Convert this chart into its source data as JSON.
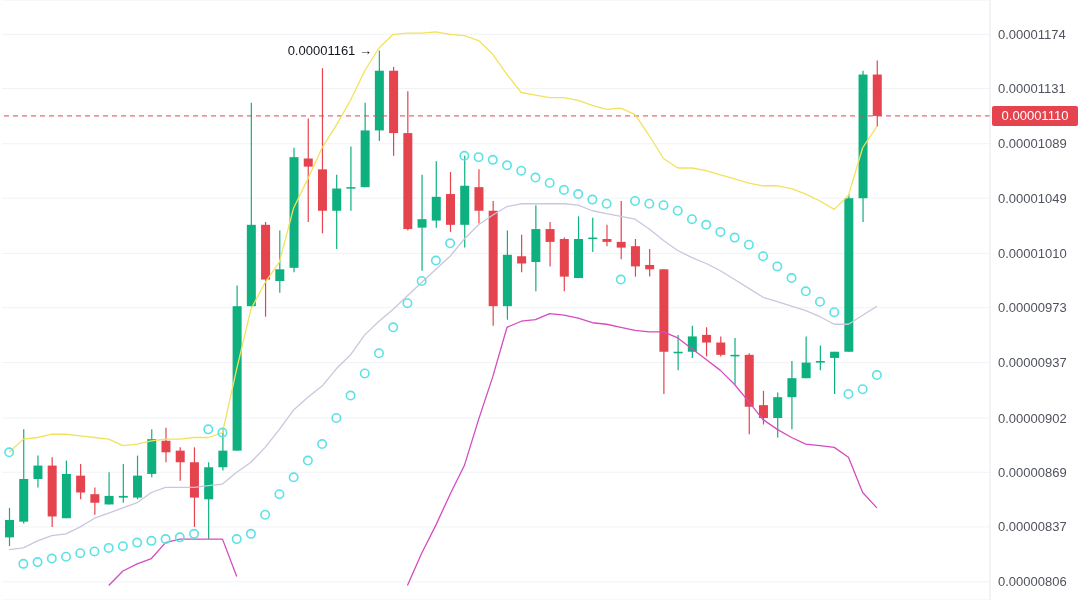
{
  "chart_data": {
    "type": "candlestick",
    "categories": [
      null,
      null,
      null,
      null,
      null,
      null,
      null,
      null,
      null,
      null,
      null,
      null,
      null,
      null,
      null,
      null,
      null,
      null,
      null,
      null,
      null,
      null,
      null,
      null,
      null,
      null,
      null,
      null,
      null,
      null,
      null,
      null,
      null,
      null,
      null,
      null,
      null,
      null,
      null,
      null,
      null,
      null,
      null,
      null,
      null,
      null,
      null,
      null,
      null,
      null,
      null,
      null,
      null,
      null,
      null,
      null,
      null,
      null,
      null,
      null,
      null,
      null
    ],
    "ohlc": [
      [
        8.31e-06,
        8.48e-06,
        8.26e-06,
        8.41e-06
      ],
      [
        8.4e-06,
        8.95e-06,
        8.39e-06,
        8.65e-06
      ],
      [
        8.65e-06,
        8.79e-06,
        8.6e-06,
        8.73e-06
      ],
      [
        8.73e-06,
        8.78e-06,
        8.37e-06,
        8.43e-06
      ],
      [
        8.42e-06,
        8.76e-06,
        8.42e-06,
        8.68e-06
      ],
      [
        8.67e-06,
        8.74e-06,
        8.53e-06,
        8.57e-06
      ],
      [
        8.56e-06,
        8.6e-06,
        8.44e-06,
        8.51e-06
      ],
      [
        8.5e-06,
        8.69e-06,
        8.5e-06,
        8.55e-06
      ],
      [
        8.54e-06,
        8.74e-06,
        8.51e-06,
        8.55e-06
      ],
      [
        8.54e-06,
        8.79e-06,
        8.53e-06,
        8.67e-06
      ],
      [
        8.68e-06,
        8.95e-06,
        8.66e-06,
        8.89e-06
      ],
      [
        8.88e-06,
        8.96e-06,
        8.75e-06,
        8.81e-06
      ],
      [
        8.82e-06,
        8.84e-06,
        8.64e-06,
        8.75e-06
      ],
      [
        8.75e-06,
        8.84e-06,
        8.37e-06,
        8.54e-06
      ],
      [
        8.53e-06,
        8.75e-06,
        8.3e-06,
        8.72e-06
      ],
      [
        8.72e-06,
        8.95e-06,
        8.7e-06,
        8.82e-06
      ],
      [
        8.82e-06,
        9.88e-06,
        8.82e-06,
        9.74e-06
      ],
      [
        9.74e-06,
        1.12e-05,
        9.74e-06,
        1.03e-05
      ],
      [
        1.03e-05,
        1.032e-05,
        9.67e-06,
        9.92e-06
      ],
      [
        9.91e-06,
        1.026e-05,
        9.83e-06,
        9.99e-06
      ],
      [
        1e-05,
        1.086e-05,
        9.97e-06,
        1.079e-05
      ],
      [
        1.078e-05,
        1.108e-05,
        1.032e-05,
        1.072e-05
      ],
      [
        1.07e-05,
        1.147e-05,
        1.024e-05,
        1.04e-05
      ],
      [
        1.04e-05,
        1.066e-05,
        1.013e-05,
        1.056e-05
      ],
      [
        1.056e-05,
        1.087e-05,
        1.04e-05,
        1.057e-05
      ],
      [
        1.057e-05,
        1.12e-05,
        1.057e-05,
        1.099e-05
      ],
      [
        1.099e-05,
        1.161e-05,
        1.091e-05,
        1.145e-05
      ],
      [
        1.145e-05,
        1.148e-05,
        1.08e-05,
        1.097e-05
      ],
      [
        1.097e-05,
        1.129e-05,
        1.026e-05,
        1.027e-05
      ],
      [
        1.028e-05,
        1.066e-05,
        9.98e-06,
        1.034e-05
      ],
      [
        1.033e-05,
        1.076e-05,
        1.028e-05,
        1.05e-05
      ],
      [
        1.052e-05,
        1.068e-05,
        1.025e-05,
        1.03e-05
      ],
      [
        1.03e-05,
        1.08e-05,
        1.014e-05,
        1.058e-05
      ],
      [
        1.057e-05,
        1.07e-05,
        1.031e-05,
        1.04e-05
      ],
      [
        1.04e-05,
        1.047e-05,
        9.61e-06,
        9.74e-06
      ],
      [
        9.74e-06,
        1.026e-05,
        9.65e-06,
        1.009e-05
      ],
      [
        1.008e-05,
        1.023e-05,
        9.97e-06,
        1.003e-05
      ],
      [
        1.004e-05,
        1.044e-05,
        9.84e-06,
        1.027e-05
      ],
      [
        1.027e-05,
        1.032e-05,
        1.001e-05,
        1.018e-05
      ],
      [
        1.02e-05,
        1.021e-05,
        9.84e-06,
        9.94e-06
      ],
      [
        9.93e-06,
        1.036e-05,
        9.93e-06,
        1.02e-05
      ],
      [
        1.02e-05,
        1.035e-05,
        1.011e-05,
        1.021e-05
      ],
      [
        1.02e-05,
        1.03e-05,
        1.015e-05,
        1.018e-05
      ],
      [
        1.018e-05,
        1.047e-05,
        1.006e-05,
        1.014e-05
      ],
      [
        1.015e-05,
        1.02e-05,
        9.94e-06,
        1.001e-05
      ],
      [
        1.002e-05,
        1.013e-05,
        9.94e-06,
        9.99e-06
      ],
      [
        9.99e-06,
        9.99e-06,
        9.17e-06,
        9.44e-06
      ],
      [
        9.43e-06,
        9.55e-06,
        9.32e-06,
        9.44e-06
      ],
      [
        9.44e-06,
        9.61e-06,
        9.4e-06,
        9.54e-06
      ],
      [
        9.55e-06,
        9.6e-06,
        9.41e-06,
        9.5e-06
      ],
      [
        9.5e-06,
        9.54e-06,
        9.41e-06,
        9.42e-06
      ],
      [
        9.41e-06,
        9.53e-06,
        9.23e-06,
        9.42e-06
      ],
      [
        9.42e-06,
        9.43e-06,
        8.92e-06,
        9.09e-06
      ],
      [
        9.1e-06,
        9.19e-06,
        8.98e-06,
        9.02e-06
      ],
      [
        9.02e-06,
        9.18e-06,
        8.9e-06,
        9.15e-06
      ],
      [
        9.15e-06,
        9.38e-06,
        8.95e-06,
        9.27e-06
      ],
      [
        9.27e-06,
        9.54e-06,
        9.27e-06,
        9.37e-06
      ],
      [
        9.37e-06,
        9.48e-06,
        9.32e-06,
        9.38e-06
      ],
      [
        9.4e-06,
        9.44e-06,
        9.17e-06,
        9.44e-06
      ],
      [
        9.44e-06,
        1.052e-05,
        9.44e-06,
        1.049e-05
      ],
      [
        1.049e-05,
        1.145e-05,
        1.032e-05,
        1.142e-05
      ],
      [
        1.142e-05,
        1.153e-05,
        1.102e-05,
        1.11e-05
      ]
    ],
    "colors": [
      "#0fb07f",
      "#0fb07f",
      "#0fb07f",
      "#e5444e",
      "#0fb07f",
      "#e5444e",
      "#e5444e",
      "#0fb07f",
      "#0fb07f",
      "#0fb07f",
      "#0fb07f",
      "#e5444e",
      "#e5444e",
      "#e5444e",
      "#0fb07f",
      "#0fb07f",
      "#0fb07f",
      "#0fb07f",
      "#e5444e",
      "#0fb07f",
      "#0fb07f",
      "#e5444e",
      "#e5444e",
      "#0fb07f",
      "#0fb07f",
      "#0fb07f",
      "#0fb07f",
      "#e5444e",
      "#e5444e",
      "#0fb07f",
      "#0fb07f",
      "#e5444e",
      "#0fb07f",
      "#e5444e",
      "#e5444e",
      "#0fb07f",
      "#e5444e",
      "#0fb07f",
      "#e5444e",
      "#e5444e",
      "#0fb07f",
      "#0fb07f",
      "#e5444e",
      "#e5444e",
      "#e5444e",
      "#e5444e",
      "#e5444e",
      "#0fb07f",
      "#0fb07f",
      "#e5444e",
      "#e5444e",
      "#0fb07f",
      "#e5444e",
      "#e5444e",
      "#0fb07f",
      "#0fb07f",
      "#0fb07f",
      "#0fb07f",
      "#0fb07f",
      "#0fb07f",
      "#0fb07f",
      "#e5444e"
    ],
    "series": [
      {
        "type": "line",
        "color": "#f2e25b",
        "values": [
          8.81e-06,
          8.89e-06,
          8.9e-06,
          8.92e-06,
          8.92e-06,
          8.91e-06,
          8.9e-06,
          8.89e-06,
          8.85e-06,
          8.86e-06,
          8.88e-06,
          8.89e-06,
          8.89e-06,
          8.9e-06,
          8.9e-06,
          8.93e-06,
          9.33e-06,
          9.72e-06,
          9.9e-06,
          1.004e-05,
          1.042e-05,
          1.063e-05,
          1.086e-05,
          1.103e-05,
          1.122e-05,
          1.145e-05,
          1.163e-05,
          1.174e-05,
          1.175e-05,
          1.175e-05,
          1.176e-05,
          1.174e-05,
          1.173e-05,
          1.169e-05,
          1.158e-05,
          1.142e-05,
          1.128e-05,
          1.126e-05,
          1.124e-05,
          1.124e-05,
          1.122e-05,
          1.118e-05,
          1.115e-05,
          1.116e-05,
          1.111e-05,
          1.095e-05,
          1.078e-05,
          1.071e-05,
          1.071e-05,
          1.069e-05,
          1.066e-05,
          1.063e-05,
          1.06e-05,
          1.058e-05,
          1.058e-05,
          1.056e-05,
          1.052e-05,
          1.047e-05,
          1.041e-05,
          1.051e-05,
          1.086e-05,
          1.102e-05
        ]
      },
      {
        "type": "line",
        "color": "#c9c7dd",
        "values": [
          8.24e-06,
          8.25e-06,
          8.29e-06,
          8.32e-06,
          8.33e-06,
          8.37e-06,
          8.42e-06,
          8.45e-06,
          8.48e-06,
          8.51e-06,
          8.57e-06,
          8.6e-06,
          8.6e-06,
          8.6e-06,
          8.61e-06,
          8.62e-06,
          8.69e-06,
          8.75e-06,
          8.84e-06,
          8.95e-06,
          9.07e-06,
          9.15e-06,
          9.22e-06,
          9.33e-06,
          9.42e-06,
          9.55e-06,
          9.64e-06,
          9.72e-06,
          9.81e-06,
          9.9e-06,
          9.99e-06,
          1.008e-05,
          1.02e-05,
          1.03e-05,
          1.037e-05,
          1.043e-05,
          1.045e-05,
          1.045e-05,
          1.045e-05,
          1.045e-05,
          1.044e-05,
          1.04e-05,
          1.038e-05,
          1.036e-05,
          1.034e-05,
          1.027e-05,
          1.019e-05,
          1.012e-05,
          1.007e-05,
          1.003e-05,
          9.98e-06,
          9.92e-06,
          9.86e-06,
          9.8e-06,
          9.77e-06,
          9.74e-06,
          9.71e-06,
          9.67e-06,
          9.62e-06,
          9.62e-06,
          9.68e-06,
          9.74e-06
        ]
      },
      {
        "type": "line",
        "color": "#d44cbf",
        "values": [
          null,
          null,
          null,
          null,
          null,
          null,
          null,
          8.04e-06,
          8.12e-06,
          8.16e-06,
          8.19e-06,
          8.28e-06,
          8.3e-06,
          8.3e-06,
          8.3e-06,
          8.3e-06,
          8.09e-06,
          null,
          null,
          null,
          null,
          null,
          null,
          null,
          null,
          null,
          null,
          null,
          8.04e-06,
          8.22e-06,
          8.38e-06,
          8.56e-06,
          8.73e-06,
          9.01e-06,
          9.28e-06,
          9.6e-06,
          9.64e-06,
          9.65e-06,
          9.69e-06,
          9.68e-06,
          9.66e-06,
          9.63e-06,
          9.62e-06,
          9.6e-06,
          9.58e-06,
          9.57e-06,
          9.57e-06,
          9.53e-06,
          9.46e-06,
          9.39e-06,
          9.32e-06,
          9.23e-06,
          9.12e-06,
          9.01e-06,
          8.95e-06,
          8.9e-06,
          8.86e-06,
          8.85e-06,
          8.84e-06,
          8.78e-06,
          8.57e-06,
          8.48e-06
        ]
      },
      {
        "type": "scatter",
        "marker": "circle",
        "color": "#5ce1e6",
        "values": [
          8.81e-06,
          8.16e-06,
          8.17e-06,
          8.19e-06,
          8.2e-06,
          8.22e-06,
          8.23e-06,
          8.25e-06,
          8.26e-06,
          8.28e-06,
          8.29e-06,
          8.3e-06,
          8.31e-06,
          8.33e-06,
          8.95e-06,
          8.93e-06,
          8.3e-06,
          8.33e-06,
          8.44e-06,
          8.56e-06,
          8.66e-06,
          8.76e-06,
          8.86e-06,
          9.02e-06,
          9.16e-06,
          9.3e-06,
          9.43e-06,
          9.6e-06,
          9.76e-06,
          9.91e-06,
          1.005e-05,
          1.017e-05,
          1.08e-05,
          1.079e-05,
          1.077e-05,
          1.073e-05,
          1.069e-05,
          1.064e-05,
          1.06e-05,
          1.055e-05,
          1.052e-05,
          1.048e-05,
          1.045e-05,
          9.92e-06,
          1.047e-05,
          1.045e-05,
          1.044e-05,
          1.04e-05,
          1.034e-05,
          1.03e-05,
          1.025e-05,
          1.021e-05,
          1.016e-05,
          1.008e-05,
          1.001e-05,
          9.93e-06,
          9.84e-06,
          9.77e-06,
          9.7e-06,
          9.17e-06,
          9.2e-06,
          9.29e-06
        ]
      }
    ],
    "log": true,
    "ylim": [
      7.96e-06,
      1.202e-05
    ],
    "yticks": [
      {
        "value": 1.174e-05,
        "label": "0.00001174"
      },
      {
        "value": 1.131e-05,
        "label": "0.00001131"
      },
      {
        "value": 1.089e-05,
        "label": "0.00001089"
      },
      {
        "value": 1.049e-05,
        "label": "0.00001049"
      },
      {
        "value": 1.01e-05,
        "label": "0.00001010"
      },
      {
        "value": 9.73e-06,
        "label": "0.00000973"
      },
      {
        "value": 9.37e-06,
        "label": "0.00000937"
      },
      {
        "value": 9.02e-06,
        "label": "0.00000902"
      },
      {
        "value": 8.69e-06,
        "label": "0.00000869"
      },
      {
        "value": 8.37e-06,
        "label": "0.00000837"
      },
      {
        "value": 8.06e-06,
        "label": "0.00000806"
      }
    ],
    "grid": "y",
    "tick_labels": "y",
    "ref_lines": [
      {
        "axis": "y",
        "value": 1.11e-05,
        "label": "0.00001110",
        "color": "#e5444e",
        "line_style": "dashed"
      }
    ],
    "annotations": [
      "0.00001161 →"
    ]
  }
}
